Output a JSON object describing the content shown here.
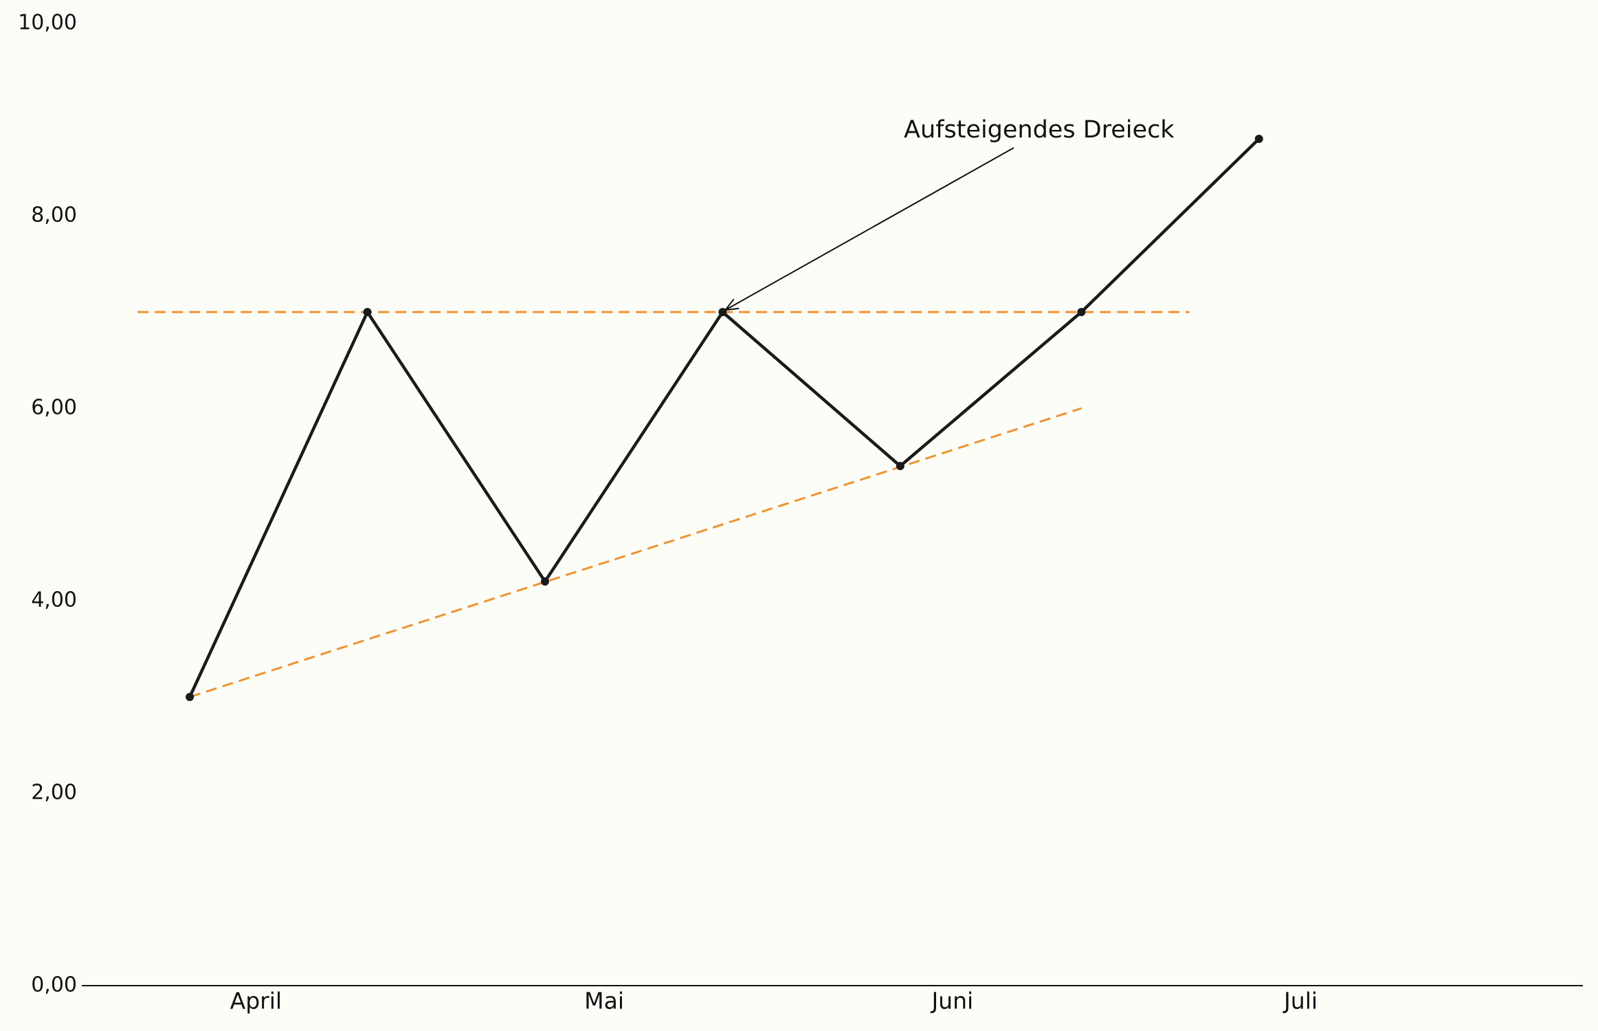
{
  "chart_data": {
    "type": "line",
    "x": [
      -0.19,
      0.32,
      0.83,
      1.34,
      1.85,
      2.37,
      2.88
    ],
    "values": [
      3,
      7,
      4.2,
      7,
      5.4,
      7,
      8.8
    ],
    "color": "#1a1a1a",
    "xlim": [
      -0.5,
      3.81
    ],
    "xticks": [
      {
        "value": 0,
        "label": "April"
      },
      {
        "value": 1,
        "label": "Mai"
      },
      {
        "value": 2,
        "label": "Juni"
      },
      {
        "value": 3,
        "label": "Juli"
      }
    ],
    "ylim": [
      0,
      10
    ],
    "yticks": [
      {
        "value": 0,
        "label": "0,00"
      },
      {
        "value": 2,
        "label": "2,00"
      },
      {
        "value": 4,
        "label": "4,00"
      },
      {
        "value": 6,
        "label": "6,00"
      },
      {
        "value": 8,
        "label": "8,00"
      },
      {
        "value": 10,
        "label": "10,00"
      }
    ],
    "reference_lines": [
      {
        "x": [
          -0.34,
          2.68
        ],
        "y": [
          7,
          7
        ],
        "color": "#f0922e"
      },
      {
        "x": [
          -0.19,
          2.37
        ],
        "y": [
          3,
          6
        ],
        "color": "#f0922e"
      }
    ],
    "annotation": {
      "text": "Aufsteigendes Dreieck",
      "x": 1.34,
      "y": 7
    }
  }
}
